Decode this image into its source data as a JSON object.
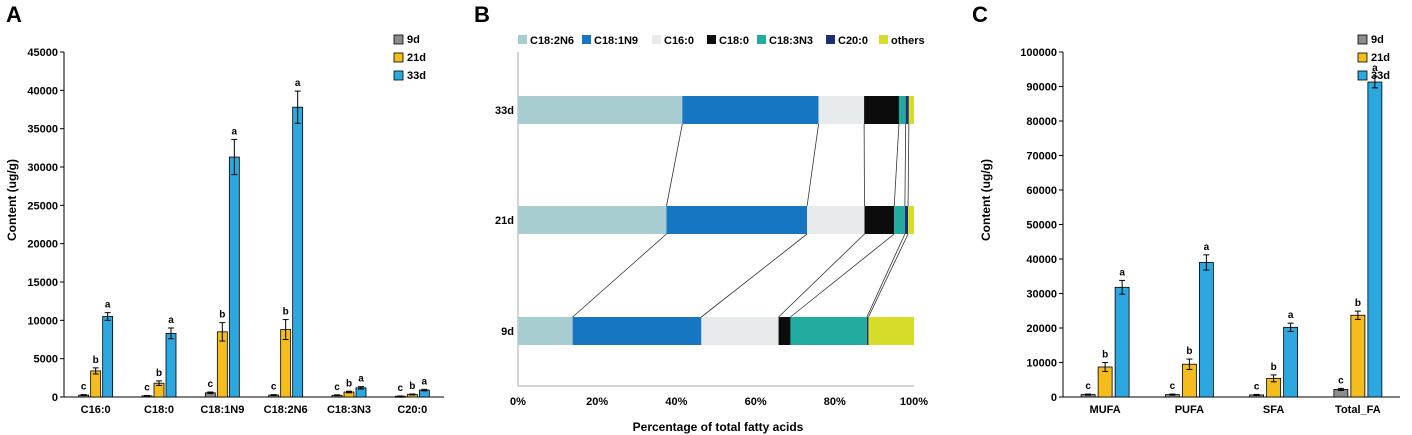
{
  "chart_data": [
    {
      "panel": "A",
      "type": "bar",
      "ylabel": "Content (ug/g)",
      "ylim": [
        0,
        45000
      ],
      "yticks": [
        "0",
        "5000",
        "10000",
        "15000",
        "20000",
        "25000",
        "30000",
        "35000",
        "40000",
        "45000"
      ],
      "categories": [
        "C16:0",
        "C18:0",
        "C18:1N9",
        "C18:2N6",
        "C18:3N3",
        "C20:0"
      ],
      "series": [
        {
          "name": "9d",
          "color": "#8c8c8c",
          "values": [
            250,
            150,
            550,
            250,
            230,
            100
          ],
          "err": [
            60,
            40,
            100,
            60,
            50,
            30
          ],
          "sig": [
            "c",
            "c",
            "c",
            "c",
            "c",
            "c"
          ]
        },
        {
          "name": "21d",
          "color": "#f4bc1c",
          "values": [
            3400,
            1800,
            8500,
            8800,
            650,
            330
          ],
          "err": [
            400,
            300,
            1200,
            1300,
            100,
            60
          ],
          "sig": [
            "b",
            "b",
            "b",
            "b",
            "b",
            "b"
          ]
        },
        {
          "name": "33d",
          "color": "#2ca7df",
          "values": [
            10500,
            8300,
            31300,
            37800,
            1200,
            900
          ],
          "err": [
            500,
            700,
            2300,
            2100,
            150,
            100
          ],
          "sig": [
            "a",
            "a",
            "a",
            "a",
            "a",
            "a"
          ]
        }
      ]
    },
    {
      "panel": "B",
      "type": "bar",
      "orientation": "horizontal-stacked",
      "xlabel": "Percentage of total fatty acids",
      "xlim": [
        0,
        100
      ],
      "xticks": [
        "0%",
        "20%",
        "40%",
        "60%",
        "80%",
        "100%"
      ],
      "categories": [
        "33d",
        "21d",
        "9d"
      ],
      "series": [
        {
          "name": "C18:2N6",
          "color": "#a8cdd1",
          "values": [
            41.5,
            37.5,
            13.8
          ]
        },
        {
          "name": "C18:1N9",
          "color": "#1676c2",
          "values": [
            34.4,
            35.5,
            32.5
          ]
        },
        {
          "name": "C16:0",
          "color": "#e8ebec",
          "values": [
            11.5,
            14.5,
            19.5
          ]
        },
        {
          "name": "C18:0",
          "color": "#0c0c0c",
          "values": [
            8.8,
            7.5,
            3.0
          ]
        },
        {
          "name": "C18:3N3",
          "color": "#22aca0",
          "values": [
            1.7,
            2.7,
            19.3
          ]
        },
        {
          "name": "C20:0",
          "color": "#1f2f74",
          "values": [
            0.8,
            0.8,
            0.4
          ]
        },
        {
          "name": "others",
          "color": "#d7dc2a",
          "values": [
            1.3,
            1.5,
            11.5
          ]
        }
      ]
    },
    {
      "panel": "C",
      "type": "bar",
      "ylabel": "Content (ug/g)",
      "ylim": [
        0,
        100000
      ],
      "yticks": [
        "0",
        "10000",
        "20000",
        "30000",
        "40000",
        "50000",
        "60000",
        "70000",
        "80000",
        "90000",
        "100000"
      ],
      "categories": [
        "MUFA",
        "PUFA",
        "SFA",
        "Total_FA"
      ],
      "series": [
        {
          "name": "9d",
          "color": "#8c8c8c",
          "values": [
            700,
            700,
            600,
            2200
          ],
          "err": [
            150,
            150,
            150,
            300
          ],
          "sig": [
            "c",
            "c",
            "c",
            "c"
          ]
        },
        {
          "name": "21d",
          "color": "#f4bc1c",
          "values": [
            8700,
            9500,
            5400,
            23700
          ],
          "err": [
            1300,
            1500,
            1000,
            1200
          ],
          "sig": [
            "b",
            "b",
            "b",
            "b"
          ]
        },
        {
          "name": "33d",
          "color": "#2ca7df",
          "values": [
            31800,
            39000,
            20200,
            91300
          ],
          "err": [
            2000,
            2200,
            1200,
            1700
          ],
          "sig": [
            "a",
            "a",
            "a",
            "a"
          ]
        }
      ]
    }
  ]
}
